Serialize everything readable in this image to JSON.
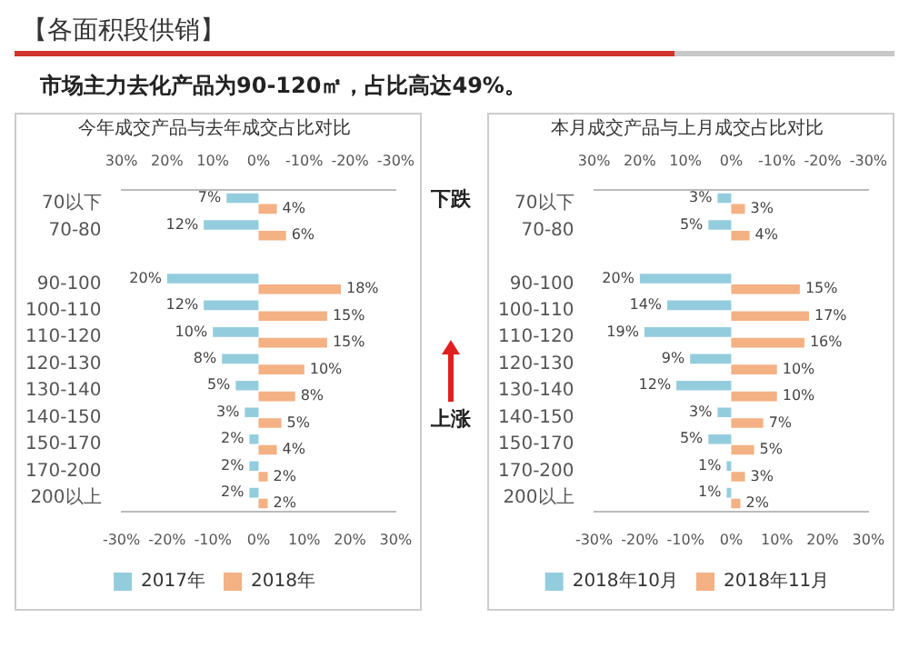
{
  "chart_data": [
    {
      "type": "other",
      "title": "【各面积段供销】",
      "subtitle": "市场主力去化产品为90-120㎡，占比高达49%。"
    },
    {
      "type": "bar",
      "orientation": "horizontal",
      "title": "今年成交产品与去年成交占比对比",
      "categories": [
        "70以下",
        "70-80",
        null,
        "90-100",
        "100-110",
        "110-120",
        "120-130",
        "130-140",
        "140-150",
        "150-170",
        "170-200",
        "200以上"
      ],
      "series": [
        {
          "name": "2017年",
          "color": "#93cddd",
          "axis": "x2",
          "values": [
            7,
            12,
            null,
            20,
            12,
            10,
            8,
            5,
            3,
            2,
            2,
            2
          ],
          "value_labels": [
            "7%",
            "12%",
            null,
            "20%",
            "12%",
            "10%",
            "8%",
            "5%",
            "3%",
            "2%",
            "2%",
            "2%"
          ]
        },
        {
          "name": "2018年",
          "color": "#f4b183",
          "values": [
            4,
            6,
            null,
            18,
            15,
            15,
            10,
            8,
            5,
            4,
            2,
            2
          ],
          "value_labels": [
            "4%",
            "6%",
            null,
            "18%",
            "15%",
            "15%",
            "10%",
            "8%",
            "5%",
            "4%",
            "2%",
            "2%"
          ]
        }
      ],
      "xlim": [
        -30,
        30
      ],
      "xticks": [
        {
          "value": -30,
          "label": "-30%"
        },
        {
          "value": -20,
          "label": "-20%"
        },
        {
          "value": -10,
          "label": "-10%"
        },
        {
          "value": 0,
          "label": "0%"
        },
        {
          "value": 10,
          "label": "10%"
        },
        {
          "value": 20,
          "label": "20%"
        },
        {
          "value": 30,
          "label": "30%"
        }
      ],
      "x2lim": [
        30,
        -30
      ],
      "x2ticks": [
        {
          "value": 30,
          "label": "30%"
        },
        {
          "value": 20,
          "label": "20%"
        },
        {
          "value": 10,
          "label": "10%"
        },
        {
          "value": 0,
          "label": "0%"
        },
        {
          "value": -10,
          "label": "-10%"
        },
        {
          "value": -20,
          "label": "-20%"
        },
        {
          "value": -30,
          "label": "-30%"
        }
      ],
      "legend": "bottom",
      "annotations": [
        "下跌",
        "上涨"
      ]
    },
    {
      "type": "bar",
      "orientation": "horizontal",
      "title": "本月成交产品与上月成交占比对比",
      "categories": [
        "70以下",
        "70-80",
        null,
        "90-100",
        "100-110",
        "110-120",
        "120-130",
        "130-140",
        "140-150",
        "150-170",
        "170-200",
        "200以上"
      ],
      "series": [
        {
          "name": "2018年10月",
          "color": "#93cddd",
          "axis": "x2",
          "values": [
            3,
            5,
            null,
            20,
            14,
            19,
            9,
            12,
            3,
            5,
            1,
            1
          ],
          "value_labels": [
            "3%",
            "5%",
            null,
            "20%",
            "14%",
            "19%",
            "9%",
            "12%",
            "3%",
            "5%",
            "1%",
            "1%"
          ]
        },
        {
          "name": "2018年11月",
          "color": "#f4b183",
          "values": [
            3,
            4,
            null,
            15,
            17,
            16,
            10,
            10,
            7,
            5,
            3,
            2
          ],
          "value_labels": [
            "3%",
            "4%",
            null,
            "15%",
            "17%",
            "16%",
            "10%",
            "10%",
            "7%",
            "5%",
            "3%",
            "2%"
          ]
        }
      ],
      "xlim": [
        -30,
        30
      ],
      "xticks": [
        {
          "value": -30,
          "label": "-30%"
        },
        {
          "value": -20,
          "label": "-20%"
        },
        {
          "value": -10,
          "label": "-10%"
        },
        {
          "value": 0,
          "label": "0%"
        },
        {
          "value": 10,
          "label": "10%"
        },
        {
          "value": 20,
          "label": "20%"
        },
        {
          "value": 30,
          "label": "30%"
        }
      ],
      "x2lim": [
        30,
        -30
      ],
      "x2ticks": [
        {
          "value": 30,
          "label": "30%"
        },
        {
          "value": 20,
          "label": "20%"
        },
        {
          "value": 10,
          "label": "10%"
        },
        {
          "value": 0,
          "label": "0%"
        },
        {
          "value": -10,
          "label": "-10%"
        },
        {
          "value": -20,
          "label": "-20%"
        },
        {
          "value": -30,
          "label": "-30%"
        }
      ],
      "legend": "bottom"
    }
  ]
}
